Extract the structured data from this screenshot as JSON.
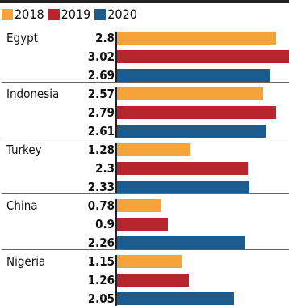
{
  "colors": {
    "2018": "#f5a33a",
    "2019": "#b5252c",
    "2020": "#1b5b8e"
  },
  "chart_data": {
    "type": "bar",
    "orientation": "horizontal",
    "categories": [
      "Egypt",
      "Indonesia",
      "Turkey",
      "China",
      "Nigeria"
    ],
    "series": [
      {
        "name": "2018",
        "values": [
          2.8,
          2.57,
          1.28,
          0.78,
          1.15
        ]
      },
      {
        "name": "2019",
        "values": [
          3.02,
          2.79,
          2.3,
          0.9,
          1.26
        ]
      },
      {
        "name": "2020",
        "values": [
          2.69,
          2.61,
          2.33,
          2.26,
          2.05
        ]
      }
    ],
    "value_labels": [
      [
        "2.8",
        "3.02",
        "2.69"
      ],
      [
        "2.57",
        "2.79",
        "2.61"
      ],
      [
        "1.28",
        "2.3",
        "2.33"
      ],
      [
        "0.78",
        "0.9",
        "2.26"
      ],
      [
        "1.15",
        "1.26",
        "2.05"
      ]
    ],
    "legend": [
      "2018",
      "2019",
      "2020"
    ],
    "legend_position": "top-left",
    "xlim": [
      0,
      3.02
    ],
    "grid": false
  }
}
